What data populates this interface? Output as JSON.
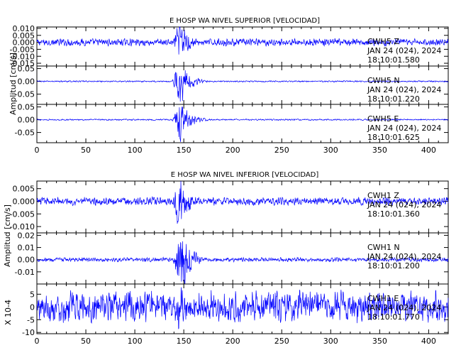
{
  "chart_data": [
    {
      "type": "line",
      "title": "E HOSP WA NIVEL SUPERIOR [VELOCIDAD]",
      "ylabel": "Amplitud [cm/s]",
      "xlim": [
        0,
        420
      ],
      "x_ticks": [
        "0",
        "50",
        "100",
        "150",
        "200",
        "250",
        "300",
        "350",
        "400"
      ],
      "panels": [
        {
          "station": "CWH5",
          "component": "Z",
          "date": "JAN 24 (024), 2024",
          "time": "18:10:01.580",
          "ylim": [
            -0.017,
            0.011
          ],
          "y_ticks": [
            "0.010",
            "0.005",
            "0.000",
            "-0.005",
            "-0.010",
            "-0.015"
          ],
          "y_tick_values": [
            0.01,
            0.005,
            0.0,
            -0.005,
            -0.01,
            -0.015
          ],
          "event_onset_s": 140,
          "peak_s": 146,
          "noise_amplitude": 0.0018,
          "peak_amplitude": 0.012
        },
        {
          "station": "CWH5",
          "component": "N",
          "date": "JAN 24 (024), 2024",
          "time": "18:10:01.220",
          "ylim": [
            -0.09,
            0.06
          ],
          "y_ticks": [
            "0.05",
            "0.00",
            "-0.05"
          ],
          "y_tick_values": [
            0.05,
            0.0,
            -0.05
          ],
          "event_onset_s": 140,
          "peak_s": 146,
          "noise_amplitude": 0.002,
          "peak_amplitude": 0.07
        },
        {
          "station": "CWH5",
          "component": "E",
          "date": "JAN 24 (024), 2024",
          "time": "18:10:01.625",
          "ylim": [
            -0.09,
            0.06
          ],
          "y_ticks": [
            "0.05",
            "0.00",
            "-0.05"
          ],
          "y_tick_values": [
            0.05,
            0.0,
            -0.05
          ],
          "event_onset_s": 140,
          "peak_s": 147,
          "noise_amplitude": 0.002,
          "peak_amplitude": 0.065
        }
      ]
    },
    {
      "type": "line",
      "title": "E HOSP WA NIVEL INFERIOR [VELOCIDAD]",
      "ylabel": "Amplitud [cm/s]",
      "ylabel_bottom": "X 10-4",
      "xlim": [
        0,
        420
      ],
      "x_ticks": [
        "0",
        "50",
        "100",
        "150",
        "200",
        "250",
        "300",
        "350",
        "400"
      ],
      "panels": [
        {
          "station": "CWH1",
          "component": "Z",
          "date": "JAN 24 (024), 2024",
          "time": "18:10:01.360",
          "ylim": [
            -0.0125,
            0.008
          ],
          "y_ticks": [
            "0.005",
            "0.000",
            "-0.005",
            "-0.010"
          ],
          "y_tick_values": [
            0.005,
            0.0,
            -0.005,
            -0.01
          ],
          "event_onset_s": 140,
          "peak_s": 146,
          "noise_amplitude": 0.0011,
          "peak_amplitude": 0.0085
        },
        {
          "station": "CWH1",
          "component": "N",
          "date": "JAN 24 (024), 2024",
          "time": "18:10:01.200",
          "ylim": [
            -0.02,
            0.022
          ],
          "y_ticks": [
            "0.02",
            "0.01",
            "0.00",
            "-0.01"
          ],
          "y_tick_values": [
            0.02,
            0.01,
            0.0,
            -0.01
          ],
          "event_onset_s": 140,
          "peak_s": 148,
          "noise_amplitude": 0.0012,
          "peak_amplitude": 0.02
        },
        {
          "station": "CWH1",
          "component": "E",
          "date": "JAN 24 (024), 2024",
          "time": "18:10:01.770",
          "ylim": [
            -10.5,
            9
          ],
          "y_ticks": [
            "5",
            "0",
            "-5",
            "-10"
          ],
          "y_tick_values": [
            5,
            0,
            -5,
            -10
          ],
          "event_onset_s": 140,
          "peak_s": 146,
          "noise_amplitude": 4.2,
          "peak_amplitude": 8
        }
      ]
    }
  ],
  "colors": {
    "trace": "#0000ff",
    "axes": "#000000",
    "background": "#ffffff"
  }
}
